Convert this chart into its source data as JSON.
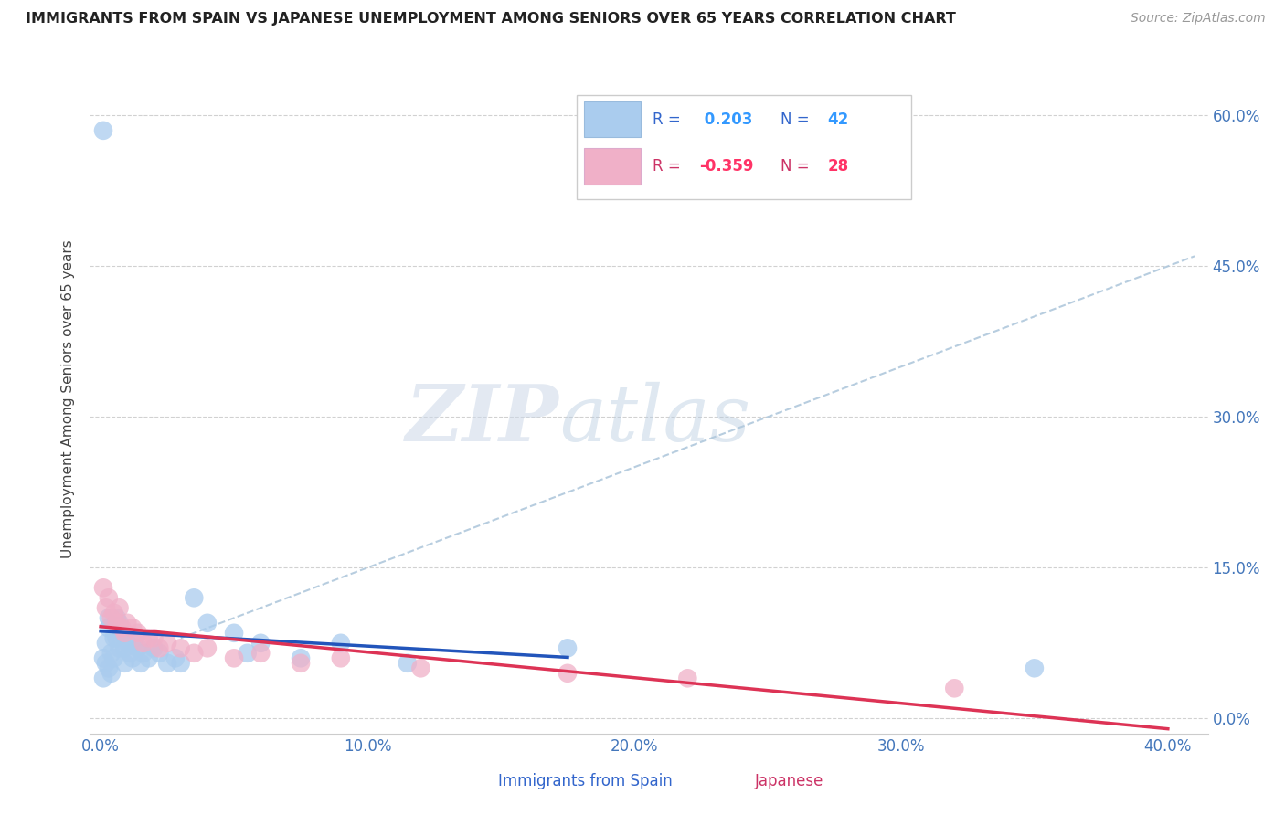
{
  "title": "IMMIGRANTS FROM SPAIN VS JAPANESE UNEMPLOYMENT AMONG SENIORS OVER 65 YEARS CORRELATION CHART",
  "source": "Source: ZipAtlas.com",
  "ylabel": "Unemployment Among Seniors over 65 years",
  "x_tick_labels": [
    "0.0%",
    "10.0%",
    "20.0%",
    "30.0%",
    "40.0%"
  ],
  "x_tick_vals": [
    0.0,
    0.1,
    0.2,
    0.3,
    0.4
  ],
  "y_tick_labels_right": [
    "0.0%",
    "15.0%",
    "30.0%",
    "45.0%",
    "60.0%"
  ],
  "y_tick_vals": [
    0.0,
    0.15,
    0.3,
    0.45,
    0.6
  ],
  "xlim": [
    -0.004,
    0.415
  ],
  "ylim": [
    -0.015,
    0.65
  ],
  "R_blue": "0.203",
  "N_blue": "42",
  "R_pink": "-0.359",
  "N_pink": "28",
  "legend_labels": [
    "Immigrants from Spain",
    "Japanese"
  ],
  "blue_color": "#aaccee",
  "pink_color": "#f0b0c8",
  "blue_line_color": "#2255bb",
  "pink_line_color": "#dd3355",
  "dashed_line_color": "#b0c8dc",
  "watermark_zip": "ZIP",
  "watermark_atlas": "atlas",
  "blue_scatter_x": [
    0.001,
    0.001,
    0.001,
    0.002,
    0.002,
    0.003,
    0.003,
    0.003,
    0.004,
    0.004,
    0.005,
    0.005,
    0.006,
    0.006,
    0.007,
    0.007,
    0.008,
    0.009,
    0.009,
    0.01,
    0.011,
    0.012,
    0.013,
    0.014,
    0.015,
    0.016,
    0.018,
    0.02,
    0.022,
    0.025,
    0.028,
    0.03,
    0.035,
    0.04,
    0.05,
    0.055,
    0.06,
    0.075,
    0.09,
    0.115,
    0.175,
    0.35
  ],
  "blue_scatter_y": [
    0.585,
    0.06,
    0.04,
    0.075,
    0.055,
    0.1,
    0.09,
    0.05,
    0.065,
    0.045,
    0.08,
    0.06,
    0.1,
    0.08,
    0.095,
    0.07,
    0.085,
    0.07,
    0.055,
    0.075,
    0.065,
    0.06,
    0.08,
    0.07,
    0.055,
    0.065,
    0.06,
    0.07,
    0.065,
    0.055,
    0.06,
    0.055,
    0.12,
    0.095,
    0.085,
    0.065,
    0.075,
    0.06,
    0.075,
    0.055,
    0.07,
    0.05
  ],
  "pink_scatter_x": [
    0.001,
    0.002,
    0.003,
    0.004,
    0.005,
    0.006,
    0.007,
    0.008,
    0.009,
    0.01,
    0.012,
    0.014,
    0.016,
    0.018,
    0.02,
    0.022,
    0.025,
    0.03,
    0.035,
    0.04,
    0.05,
    0.06,
    0.075,
    0.09,
    0.12,
    0.175,
    0.22,
    0.32
  ],
  "pink_scatter_y": [
    0.13,
    0.11,
    0.12,
    0.1,
    0.105,
    0.095,
    0.11,
    0.09,
    0.085,
    0.095,
    0.09,
    0.085,
    0.075,
    0.08,
    0.08,
    0.07,
    0.075,
    0.07,
    0.065,
    0.07,
    0.06,
    0.065,
    0.055,
    0.06,
    0.05,
    0.045,
    0.04,
    0.03
  ]
}
